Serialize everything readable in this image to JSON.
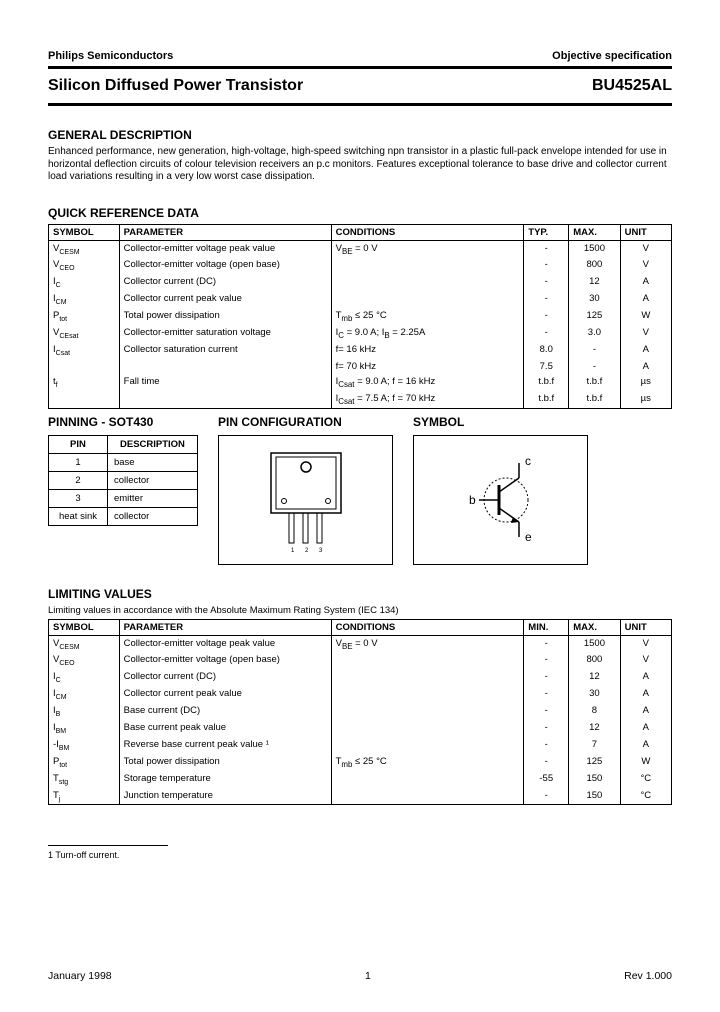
{
  "header": {
    "company": "Philips Semiconductors",
    "doctype": "Objective specification"
  },
  "title": {
    "name": "Silicon Diffused Power Transistor",
    "part": "BU4525AL"
  },
  "general": {
    "heading": "GENERAL DESCRIPTION",
    "text": "Enhanced performance, new generation, high-voltage, high-speed switching npn transistor in a plastic full-pack envelope intended for use in horizontal deflection circuits of colour television receivers an p.c monitors. Features exceptional tolerance to base drive and collector current load variations resulting in a very low worst case dissipation."
  },
  "qrd": {
    "heading": "QUICK REFERENCE DATA",
    "cols": [
      "SYMBOL",
      "PARAMETER",
      "CONDITIONS",
      "TYP.",
      "MAX.",
      "UNIT"
    ],
    "rows": [
      {
        "sym": "V",
        "sub": "CESM",
        "param": "Collector-emitter voltage peak value",
        "cond": "V<sub>BE</sub> = 0 V",
        "typ": "-",
        "max": "1500",
        "unit": "V"
      },
      {
        "sym": "V",
        "sub": "CEO",
        "param": "Collector-emitter voltage (open base)",
        "cond": "",
        "typ": "-",
        "max": "800",
        "unit": "V"
      },
      {
        "sym": "I",
        "sub": "C",
        "param": "Collector current (DC)",
        "cond": "",
        "typ": "-",
        "max": "12",
        "unit": "A"
      },
      {
        "sym": "I",
        "sub": "CM",
        "param": "Collector current peak value",
        "cond": "",
        "typ": "-",
        "max": "30",
        "unit": "A"
      },
      {
        "sym": "P",
        "sub": "tot",
        "param": "Total power dissipation",
        "cond": "T<sub>mb</sub> ≤ 25 °C",
        "typ": "-",
        "max": "125",
        "unit": "W"
      },
      {
        "sym": "V",
        "sub": "CEsat",
        "param": "Collector-emitter saturation voltage",
        "cond": "I<sub>C</sub> = 9.0 A; I<sub>B</sub> = 2.25A",
        "typ": "-",
        "max": "3.0",
        "unit": "V"
      },
      {
        "sym": "I",
        "sub": "Csat",
        "param": "Collector saturation current",
        "cond": "f= 16 kHz",
        "typ": "8.0",
        "max": "-",
        "unit": "A"
      },
      {
        "sym": "",
        "sub": "",
        "param": "",
        "cond": "f= 70 kHz",
        "typ": "7.5",
        "max": "-",
        "unit": "A"
      },
      {
        "sym": "t",
        "sub": "f",
        "param": "Fall time",
        "cond": "I<sub>Csat</sub> = 9.0 A; f = 16 kHz",
        "typ": "t.b.f",
        "max": "t.b.f",
        "unit": "µs"
      },
      {
        "sym": "",
        "sub": "",
        "param": "",
        "cond": "I<sub>Csat</sub> = 7.5 A; f = 70 kHz",
        "typ": "t.b.f",
        "max": "t.b.f",
        "unit": "µs"
      }
    ]
  },
  "pinning": {
    "heading": "PINNING - SOT430",
    "cols": [
      "PIN",
      "DESCRIPTION"
    ],
    "rows": [
      {
        "pin": "1",
        "desc": "base"
      },
      {
        "pin": "2",
        "desc": "collector"
      },
      {
        "pin": "3",
        "desc": "emitter"
      },
      {
        "pin": "heat sink",
        "desc": "collector"
      }
    ]
  },
  "pinconfig": {
    "heading": "PIN CONFIGURATION"
  },
  "symbol": {
    "heading": "SYMBOL",
    "labels": {
      "b": "b",
      "c": "c",
      "e": "e"
    }
  },
  "limiting": {
    "heading": "LIMITING VALUES",
    "sub": "Limiting values in accordance with the Absolute Maximum Rating System (IEC 134)",
    "cols": [
      "SYMBOL",
      "PARAMETER",
      "CONDITIONS",
      "MIN.",
      "MAX.",
      "UNIT"
    ],
    "rows": [
      {
        "sym": "V",
        "sub": "CESM",
        "param": "Collector-emitter voltage peak value",
        "cond": "V<sub>BE</sub> = 0 V",
        "min": "-",
        "max": "1500",
        "unit": "V"
      },
      {
        "sym": "V",
        "sub": "CEO",
        "param": "Collector-emitter voltage (open base)",
        "cond": "",
        "min": "-",
        "max": "800",
        "unit": "V"
      },
      {
        "sym": "I",
        "sub": "C",
        "param": "Collector current (DC)",
        "cond": "",
        "min": "-",
        "max": "12",
        "unit": "A"
      },
      {
        "sym": "I",
        "sub": "CM",
        "param": "Collector current peak value",
        "cond": "",
        "min": "-",
        "max": "30",
        "unit": "A"
      },
      {
        "sym": "I",
        "sub": "B",
        "param": "Base current (DC)",
        "cond": "",
        "min": "-",
        "max": "8",
        "unit": "A"
      },
      {
        "sym": "I",
        "sub": "BM",
        "param": "Base current peak value",
        "cond": "",
        "min": "-",
        "max": "12",
        "unit": "A"
      },
      {
        "sym": "-I",
        "sub": "BM",
        "param": "Reverse base current peak value ¹",
        "cond": "",
        "min": "-",
        "max": "7",
        "unit": "A"
      },
      {
        "sym": "P",
        "sub": "tot",
        "param": "Total power dissipation",
        "cond": "T<sub>mb</sub> ≤ 25 °C",
        "min": "-",
        "max": "125",
        "unit": "W"
      },
      {
        "sym": "T",
        "sub": "stg",
        "param": "Storage temperature",
        "cond": "",
        "min": "-55",
        "max": "150",
        "unit": "°C"
      },
      {
        "sym": "T",
        "sub": "j",
        "param": "Junction temperature",
        "cond": "",
        "min": "-",
        "max": "150",
        "unit": "°C"
      }
    ]
  },
  "footnote": "1 Turn-off current.",
  "footer": {
    "date": "January 1998",
    "page": "1",
    "rev": "Rev 1.000"
  },
  "colors": {
    "text": "#000000",
    "bg": "#ffffff",
    "outer": "#5b5b5b"
  },
  "layout": {
    "qrd_widths": [
      "11%",
      "33%",
      "30%",
      "7%",
      "8%",
      "8%"
    ],
    "lim_widths": [
      "11%",
      "33%",
      "30%",
      "7%",
      "8%",
      "8%"
    ]
  }
}
